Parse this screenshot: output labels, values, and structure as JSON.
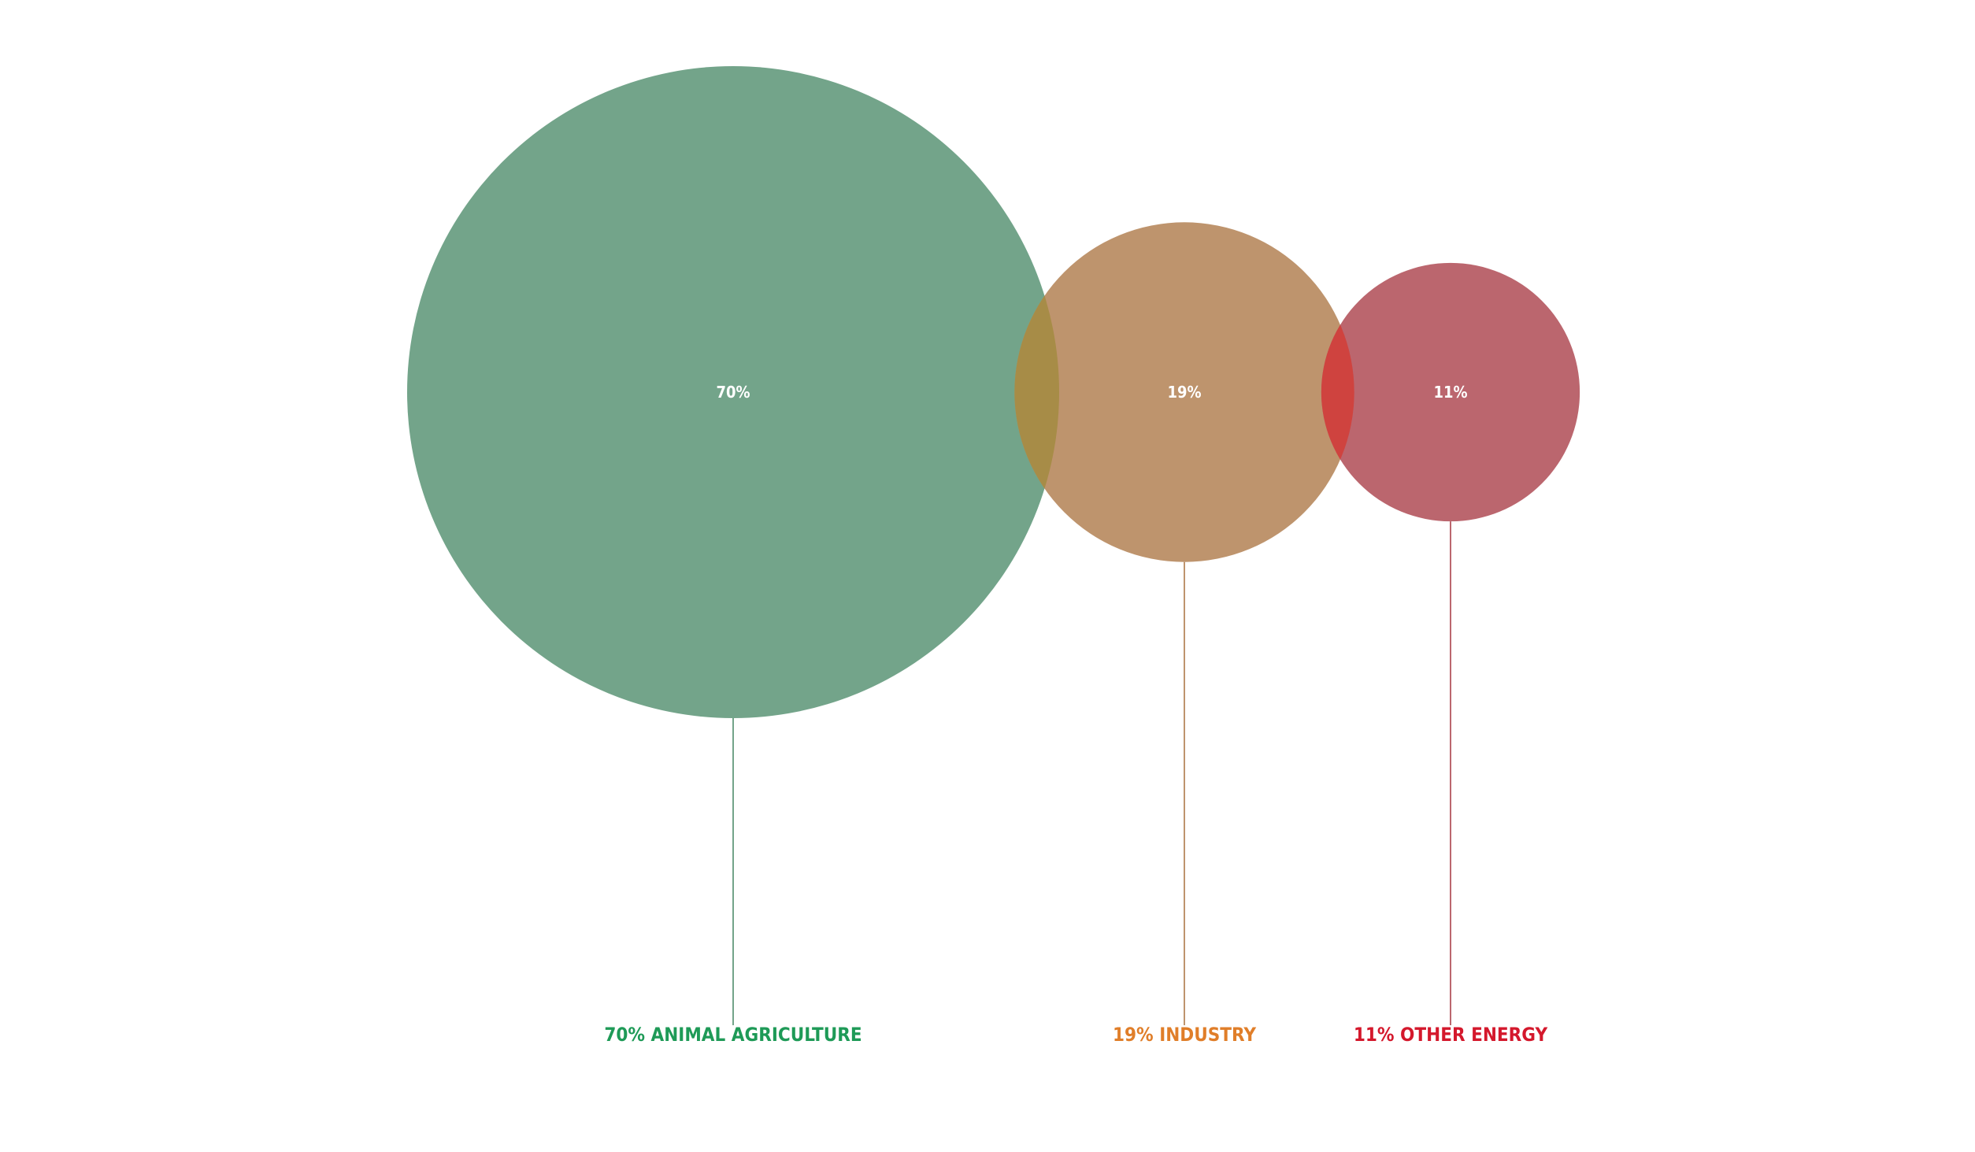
{
  "chart_data": {
    "type": "bubble",
    "title": "",
    "categories": [
      "ANIMAL AGRICULTURE",
      "INDUSTRY",
      "OTHER ENERGY"
    ],
    "values": [
      70,
      19,
      11
    ],
    "unit": "%",
    "value_labels": [
      "70%",
      "19%",
      "11%"
    ],
    "captions": [
      "70% ANIMAL AGRICULTURE",
      "19% INDUSTRY",
      "11% OTHER ENERGY"
    ],
    "bubble_colors": [
      "#73a48a",
      "#be946d",
      "#bb666e"
    ],
    "caption_colors": [
      "#1e9a57",
      "#e07e29",
      "#d4182c"
    ]
  }
}
